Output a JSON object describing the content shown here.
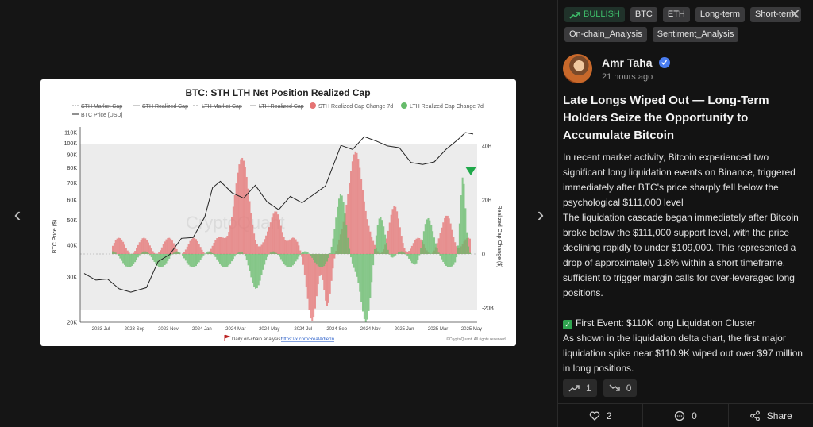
{
  "viewer": {
    "prev_label": "‹",
    "next_label": "›"
  },
  "tags": [
    "BTC",
    "ETH",
    "Long-term",
    "Short-term",
    "On-chain_Analysis",
    "Sentiment_Analysis"
  ],
  "sentiment": {
    "label": "BULLISH",
    "color": "#3ebd6a",
    "icon": "trending-up-icon"
  },
  "close_label": "✕",
  "author": {
    "name": "Amr Taha",
    "time": "21 hours ago",
    "verified_icon": "verified-badge-icon"
  },
  "post": {
    "title": "Late Longs Wiped Out — Long-Term Holders Seize the Opportunity to Accumulate Bitcoin",
    "paragraph1": "In recent market activity, Bitcoin experienced two significant long liquidation events on Binance, triggered immediately after BTC's price sharply fell below the psychological $111,000 level",
    "paragraph2": "The liquidation cascade began immediately after Bitcoin broke below the $111,000 support level, with the price declining rapidly to under $109,000. This represented a drop of approximately 1.8% within a short timeframe, sufficient to trigger margin calls for over-leveraged long positions.",
    "event_heading": "First Event: $110K long Liquidation Cluster",
    "paragraph3": "As shown in the liquidation delta chart, the first major liquidation spike near $110.9K wiped out over $97 million in long positions."
  },
  "votes": {
    "up": "1",
    "down": "0"
  },
  "footer": {
    "likes": "2",
    "comments": "0",
    "share_label": "Share"
  },
  "chart_data": {
    "type": "area",
    "title": "BTC: STH LTH Net Position Realized Cap",
    "legend": [
      "STH Market Cap",
      "STH Realized Cap",
      "LTH Market Cap",
      "LTH Realized Cap",
      "STH Realized Cap Change 7d",
      "LTH Realized Cap Change 7d",
      "BTC Price [USD]"
    ],
    "ylabel_left": "BTC Price ($)",
    "ylabel_right": "Realized Cap Change ($)",
    "left_ticks": [
      "110K",
      "100K",
      "90K",
      "80K",
      "70K",
      "60K",
      "50K",
      "40K",
      "30K",
      "20K"
    ],
    "right_ticks": [
      "40B",
      "20B",
      "0",
      "-20B"
    ],
    "x_ticks": [
      "2023 Jul",
      "2023 Sep",
      "2023 Nov",
      "2024 Jan",
      "2024 Mar",
      "2024 May",
      "2024 Jul",
      "2024 Sep",
      "2024 Nov",
      "2025 Jan",
      "2025 Mar",
      "2025 May"
    ],
    "footer_text": "Daily on-chain analysis:",
    "footer_link": "https://x.com/RealAdlerIn",
    "credit": "©CryptoQuant. All rights reserved.",
    "watermark": "CryptoQuant",
    "colors": {
      "sth": "#e57373",
      "lth": "#66bb6a",
      "price": "#222222"
    },
    "price_series": [
      {
        "t": 0.0,
        "v": 31000
      },
      {
        "t": 0.03,
        "v": 29200
      },
      {
        "t": 0.06,
        "v": 29500
      },
      {
        "t": 0.09,
        "v": 27000
      },
      {
        "t": 0.12,
        "v": 26200
      },
      {
        "t": 0.16,
        "v": 27300
      },
      {
        "t": 0.19,
        "v": 34500
      },
      {
        "t": 0.22,
        "v": 36800
      },
      {
        "t": 0.25,
        "v": 42500
      },
      {
        "t": 0.28,
        "v": 42800
      },
      {
        "t": 0.31,
        "v": 51500
      },
      {
        "t": 0.33,
        "v": 67000
      },
      {
        "t": 0.35,
        "v": 71000
      },
      {
        "t": 0.38,
        "v": 64000
      },
      {
        "t": 0.41,
        "v": 61000
      },
      {
        "t": 0.44,
        "v": 68500
      },
      {
        "t": 0.47,
        "v": 59000
      },
      {
        "t": 0.5,
        "v": 55000
      },
      {
        "t": 0.53,
        "v": 62000
      },
      {
        "t": 0.56,
        "v": 58500
      },
      {
        "t": 0.59,
        "v": 63000
      },
      {
        "t": 0.62,
        "v": 68000
      },
      {
        "t": 0.66,
        "v": 98000
      },
      {
        "t": 0.69,
        "v": 94500
      },
      {
        "t": 0.72,
        "v": 106000
      },
      {
        "t": 0.75,
        "v": 102000
      },
      {
        "t": 0.78,
        "v": 97500
      },
      {
        "t": 0.81,
        "v": 96000
      },
      {
        "t": 0.84,
        "v": 84000
      },
      {
        "t": 0.87,
        "v": 82500
      },
      {
        "t": 0.9,
        "v": 84500
      },
      {
        "t": 0.93,
        "v": 94500
      },
      {
        "t": 0.96,
        "v": 103000
      },
      {
        "t": 0.98,
        "v": 110000
      },
      {
        "t": 1.0,
        "v": 108500
      }
    ]
  }
}
